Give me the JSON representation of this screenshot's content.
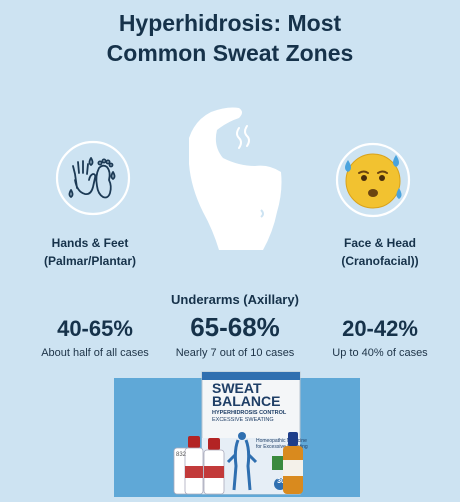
{
  "title": {
    "line1": "Hyperhidrosis: Most",
    "line2": "Common Sweat Zones"
  },
  "zones": {
    "left": {
      "name": "Hands & Feet",
      "sub": "(Palmar/Plantar)"
    },
    "right": {
      "name": "Face & Head",
      "sub": "(Cranofacial))"
    },
    "center": {
      "name": "Underarms (Axillary)"
    }
  },
  "stats": {
    "left": {
      "value": "40-65%",
      "caption": "About half of all cases"
    },
    "center": {
      "value": "65-68%",
      "caption": "Nearly 7 out of 10 cases"
    },
    "right": {
      "value": "20-42%",
      "caption": "Up to 40% of cases"
    }
  },
  "product": {
    "box_brand_line1": "SWEAT",
    "box_brand_line2": "BALANCE",
    "box_line1": "HYPERHIDROSIS CONTROL",
    "box_line2": "EXCESSIVE SWEATING",
    "box_line3": "Homeopathic Medicine",
    "box_line4": "for Excessive Sweating",
    "box_badge": "30",
    "bottle_label": "832"
  },
  "colors": {
    "background": "#cde3f2",
    "title_text": "#16324a",
    "icon_circle": "#ffffff",
    "product_panel": "#5fa8d7",
    "emoji_face": "#f2c230",
    "sweat_drop": "#4aa3dd"
  },
  "icons": {
    "left": "hands-feet-sweat-icon",
    "center": "armpit-sweat-icon",
    "right": "sweating-face-emoji-icon"
  }
}
